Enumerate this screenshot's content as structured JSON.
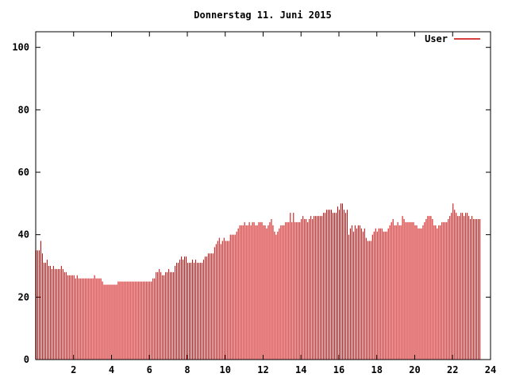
{
  "chart_data": {
    "type": "bar",
    "title": "Donnerstag 11. Juni 2015",
    "xlabel": "",
    "ylabel": "",
    "xlim": [
      0,
      24
    ],
    "ylim": [
      0,
      105
    ],
    "x_ticks": [
      2,
      4,
      6,
      8,
      10,
      12,
      14,
      16,
      18,
      20,
      22,
      24
    ],
    "y_ticks": [
      0,
      20,
      40,
      60,
      80,
      100
    ],
    "grid": false,
    "legend_position": "top-right",
    "series": [
      {
        "name": "User",
        "color": "#cc0000",
        "x_step_minutes": 5,
        "values": [
          35,
          35,
          35,
          38,
          34,
          31,
          31,
          32,
          30,
          30,
          29,
          30,
          29,
          29,
          29,
          29,
          30,
          29,
          28,
          28,
          27,
          27,
          27,
          27,
          27,
          26,
          27,
          26,
          26,
          26,
          26,
          26,
          26,
          26,
          26,
          26,
          26,
          27,
          26,
          26,
          26,
          26,
          25,
          24,
          24,
          24,
          24,
          24,
          24,
          24,
          24,
          24,
          25,
          25,
          25,
          25,
          25,
          25,
          25,
          25,
          25,
          25,
          25,
          25,
          25,
          25,
          25,
          25,
          25,
          25,
          25,
          25,
          25,
          25,
          26,
          26,
          28,
          28,
          29,
          28,
          27,
          27,
          28,
          28,
          29,
          28,
          28,
          28,
          30,
          31,
          31,
          32,
          33,
          32,
          33,
          33,
          31,
          31,
          31,
          32,
          31,
          32,
          31,
          31,
          31,
          31,
          32,
          33,
          33,
          34,
          34,
          34,
          34,
          36,
          37,
          38,
          39,
          37,
          38,
          39,
          38,
          38,
          38,
          40,
          40,
          40,
          40,
          41,
          42,
          43,
          43,
          43,
          44,
          43,
          43,
          44,
          43,
          44,
          44,
          43,
          43,
          44,
          44,
          44,
          43,
          43,
          42,
          43,
          44,
          45,
          43,
          41,
          40,
          41,
          42,
          43,
          43,
          43,
          44,
          44,
          44,
          47,
          44,
          47,
          44,
          44,
          44,
          44,
          45,
          46,
          45,
          45,
          44,
          45,
          46,
          45,
          46,
          46,
          46,
          46,
          46,
          46,
          47,
          47,
          48,
          48,
          48,
          48,
          47,
          47,
          47,
          49,
          48,
          50,
          50,
          48,
          47,
          48,
          40,
          42,
          43,
          41,
          43,
          42,
          43,
          43,
          42,
          41,
          42,
          39,
          38,
          38,
          38,
          40,
          41,
          42,
          41,
          42,
          42,
          42,
          41,
          41,
          41,
          42,
          43,
          44,
          45,
          43,
          43,
          44,
          43,
          43,
          46,
          45,
          44,
          44,
          44,
          44,
          44,
          44,
          43,
          43,
          42,
          42,
          42,
          43,
          44,
          45,
          46,
          46,
          46,
          45,
          43,
          43,
          42,
          43,
          43,
          44,
          44,
          44,
          44,
          45,
          46,
          47,
          50,
          48,
          47,
          46,
          46,
          47,
          47,
          46,
          47,
          47,
          46,
          45,
          46,
          45,
          45,
          45,
          45,
          45
        ]
      }
    ]
  }
}
